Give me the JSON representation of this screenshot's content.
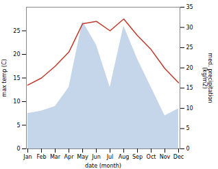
{
  "chart_data": {
    "type": "line",
    "categories": [
      "Jan",
      "Feb",
      "Mar",
      "Apr",
      "May",
      "Jun",
      "Jul",
      "Aug",
      "Sep",
      "Oct",
      "Nov",
      "Dec"
    ],
    "series": [
      {
        "type": "area",
        "color": "#c5d5ea",
        "values": [
          7.5,
          8.0,
          9.0,
          13.0,
          27.0,
          22.0,
          13.0,
          26.0,
          19.0,
          13.0,
          7.0,
          8.5
        ]
      },
      {
        "type": "line",
        "color": "#c0392b",
        "values": [
          13.5,
          15.0,
          17.5,
          20.5,
          26.5,
          27.0,
          25.0,
          27.5,
          24.0,
          21.0,
          17.0,
          14.0
        ]
      }
    ],
    "xlabel": "date (month)",
    "ylabel": "max temp (C)",
    "y2label": "med. precipitation\n(kg/m2)",
    "ylim": [
      0,
      30
    ],
    "yticks": [
      0,
      5,
      10,
      15,
      20,
      25
    ],
    "y2lim": [
      0,
      35
    ],
    "y2ticks": [
      0,
      5,
      10,
      15,
      20,
      25,
      30,
      35
    ]
  }
}
